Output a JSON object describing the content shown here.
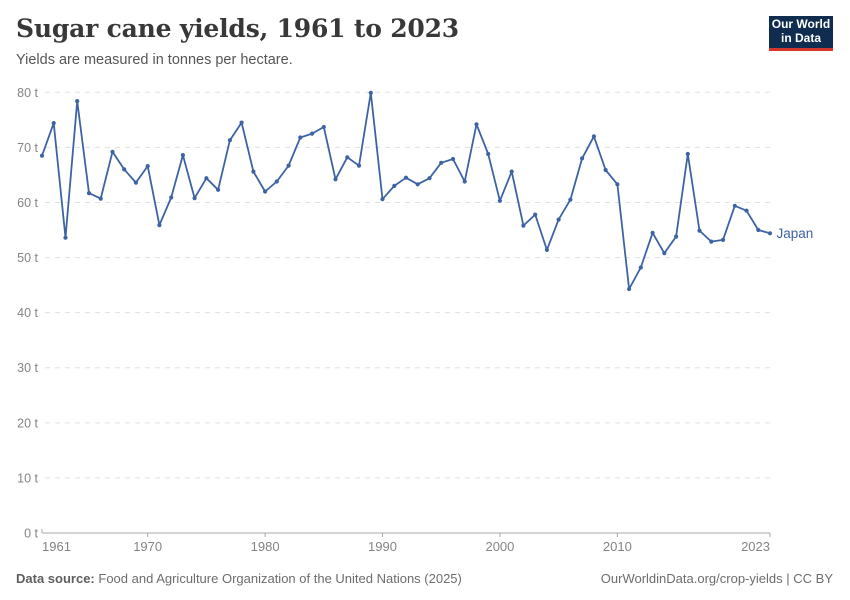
{
  "header": {
    "title": "Sugar cane yields, 1961 to 2023",
    "subtitle": "Yields are measured in tonnes per hectare.",
    "logo_line1": "Our World",
    "logo_line2": "in Data",
    "logo_bg_color": "#102d50",
    "logo_accent_color": "#d4382c"
  },
  "footer": {
    "data_source_label": "Data source:",
    "data_source_value": "Food and Agriculture Organization of the United Nations (2025)",
    "url": "OurWorldinData.org/crop-yields",
    "separator": "|",
    "license": "CC BY"
  },
  "chart_data": {
    "type": "line",
    "title": "Sugar cane yields, 1961 to 2023",
    "subtitle": "Yields are measured in tonnes per hectare.",
    "xlabel": "",
    "ylabel": "",
    "xlim": [
      1961,
      2023
    ],
    "ylim": [
      0,
      80
    ],
    "grid": "horizontal-dashed",
    "legend_position": "end-of-line-label",
    "x_ticks": [
      1961,
      1970,
      1980,
      1990,
      2000,
      2010,
      2023
    ],
    "y_ticks": [
      0,
      10,
      20,
      30,
      40,
      50,
      60,
      70,
      80
    ],
    "y_tick_suffix": " t",
    "series": [
      {
        "name": "Japan",
        "color": "#3e63a3",
        "years": [
          1961,
          1962,
          1963,
          1964,
          1965,
          1966,
          1967,
          1968,
          1969,
          1970,
          1971,
          1972,
          1973,
          1974,
          1975,
          1976,
          1977,
          1978,
          1979,
          1980,
          1981,
          1982,
          1983,
          1984,
          1985,
          1986,
          1987,
          1988,
          1989,
          1990,
          1991,
          1992,
          1993,
          1994,
          1995,
          1996,
          1997,
          1998,
          1999,
          2000,
          2001,
          2002,
          2003,
          2004,
          2005,
          2006,
          2007,
          2008,
          2009,
          2010,
          2011,
          2012,
          2013,
          2014,
          2015,
          2016,
          2017,
          2018,
          2019,
          2020,
          2021,
          2022,
          2023
        ],
        "values": [
          68.5,
          74.4,
          53.6,
          78.4,
          61.7,
          60.7,
          69.2,
          66.0,
          63.6,
          66.6,
          55.9,
          60.9,
          68.6,
          60.8,
          64.4,
          62.3,
          71.3,
          74.5,
          65.6,
          62.0,
          63.8,
          66.7,
          71.8,
          72.5,
          73.7,
          64.2,
          68.2,
          66.7,
          79.9,
          60.6,
          63.0,
          64.5,
          63.3,
          64.4,
          67.2,
          67.9,
          63.8,
          74.2,
          68.8,
          60.3,
          65.6,
          55.8,
          57.8,
          51.4,
          56.9,
          60.5,
          68.0,
          72.0,
          65.9,
          63.3,
          44.3,
          48.2,
          54.5,
          50.8,
          53.8,
          68.8,
          54.9,
          52.9,
          53.2,
          59.4,
          58.5,
          55.0,
          54.4
        ]
      }
    ],
    "colors": {
      "gridline": "#e0e0e0",
      "axis_line": "#a8a8a8",
      "tick_label": "#848484"
    }
  }
}
